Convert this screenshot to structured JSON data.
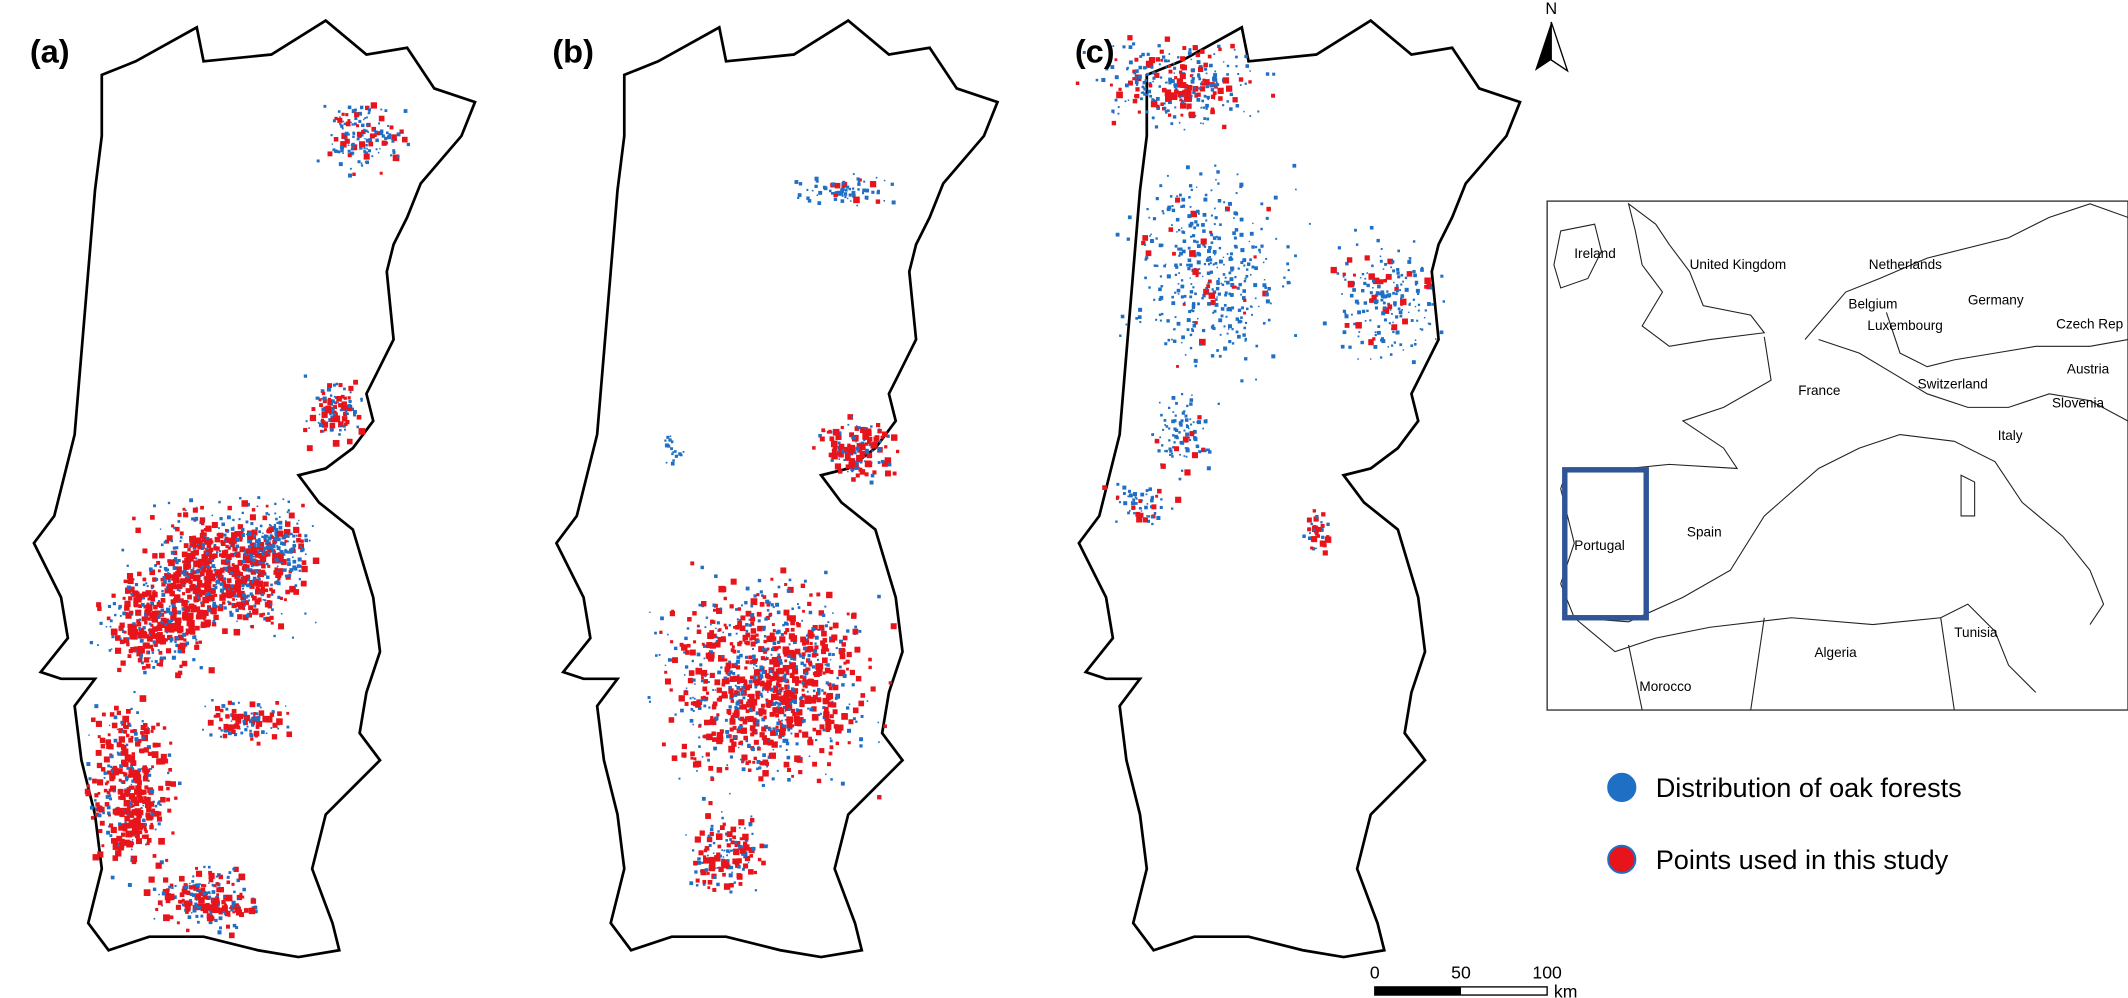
{
  "panels": [
    {
      "label": "(a)"
    },
    {
      "label": "(b)"
    },
    {
      "label": "(c)"
    }
  ],
  "north_arrow": "N",
  "inset": {
    "countries": [
      "Ireland",
      "United Kingdom",
      "Netherlands",
      "Germany",
      "Belgium",
      "Luxembourg",
      "Czech Rep",
      "France",
      "Switzerland",
      "Austria",
      "Slovenia",
      "Italy",
      "Spain",
      "Portugal",
      "Algeria",
      "Tunisia",
      "Morocco"
    ]
  },
  "legend": [
    {
      "label": "Distribution of oak forests",
      "color": "#1f6fc5"
    },
    {
      "label": "Points used in this study",
      "color": "#e8141b"
    }
  ],
  "scale_bar": {
    "ticks": [
      0,
      50,
      100
    ],
    "unit": "km"
  }
}
